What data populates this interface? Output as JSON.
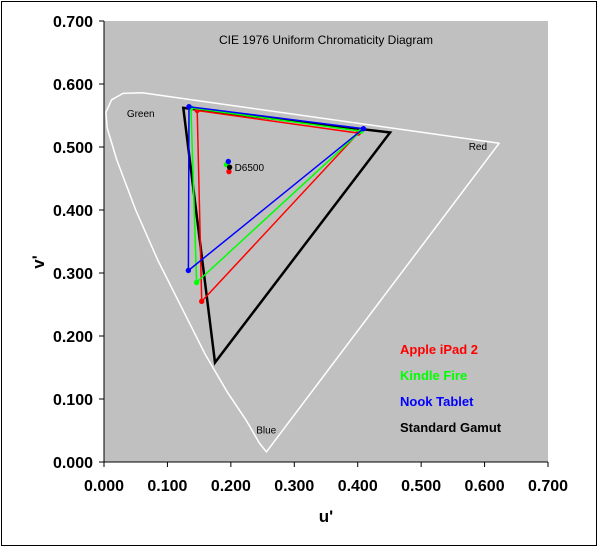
{
  "chart_data": {
    "type": "scatter",
    "title": "CIE 1976 Uniform Chromaticity Diagram",
    "xlabel": "u'",
    "ylabel": "v'",
    "xlim": [
      0.0,
      0.7
    ],
    "ylim": [
      0.0,
      0.7
    ],
    "x_ticks": [
      "0.000",
      "0.100",
      "0.200",
      "0.300",
      "0.400",
      "0.500",
      "0.600",
      "0.700"
    ],
    "y_ticks": [
      "0.000",
      "0.100",
      "0.200",
      "0.300",
      "0.400",
      "0.500",
      "0.600",
      "0.700"
    ],
    "grid": false,
    "background": "#c0c0c0",
    "region_labels": [
      {
        "text": "Green",
        "x": 0.036,
        "y": 0.548
      },
      {
        "text": "Red",
        "x": 0.575,
        "y": 0.495
      },
      {
        "text": "Blue",
        "x": 0.24,
        "y": 0.045
      }
    ],
    "spectral_locus": [
      [
        0.256,
        0.016
      ],
      [
        0.245,
        0.03
      ],
      [
        0.225,
        0.065
      ],
      [
        0.195,
        0.11
      ],
      [
        0.16,
        0.17
      ],
      [
        0.125,
        0.24
      ],
      [
        0.085,
        0.32
      ],
      [
        0.05,
        0.4
      ],
      [
        0.02,
        0.48
      ],
      [
        0.005,
        0.53
      ],
      [
        0.003,
        0.555
      ],
      [
        0.012,
        0.575
      ],
      [
        0.03,
        0.585
      ],
      [
        0.06,
        0.586
      ],
      [
        0.623,
        0.506
      ],
      [
        0.256,
        0.016
      ]
    ],
    "series": [
      {
        "name": "Apple iPad 2",
        "color": "#ff0000",
        "gamut": [
          [
            0.147,
            0.558
          ],
          [
            0.401,
            0.522
          ],
          [
            0.154,
            0.255
          ]
        ],
        "white": [
          0.197,
          0.461
        ]
      },
      {
        "name": "Kindle Fire",
        "color": "#00ff00",
        "gamut": [
          [
            0.137,
            0.562
          ],
          [
            0.405,
            0.525
          ],
          [
            0.146,
            0.285
          ]
        ],
        "white": [
          0.193,
          0.472
        ]
      },
      {
        "name": "Nook Tablet",
        "color": "#0000ff",
        "gamut": [
          [
            0.134,
            0.564
          ],
          [
            0.409,
            0.529
          ],
          [
            0.133,
            0.304
          ]
        ],
        "white": [
          0.196,
          0.477
        ]
      },
      {
        "name": "Standard Gamut",
        "color": "#000000",
        "gamut": [
          [
            0.125,
            0.562
          ],
          [
            0.451,
            0.523
          ],
          [
            0.175,
            0.158
          ]
        ],
        "white": [
          0.198,
          0.468
        ]
      }
    ],
    "annotations": [
      {
        "text": "D6500",
        "x": 0.198,
        "y": 0.468
      }
    ],
    "legend_placement": "bottom-right"
  }
}
